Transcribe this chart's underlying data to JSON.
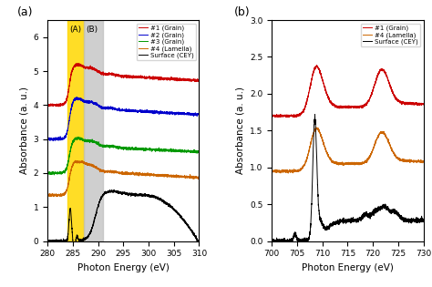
{
  "panel_a": {
    "xlabel": "Photon Energy (eV)",
    "ylabel": "Absorbance (a. u.)",
    "xlim": [
      280,
      310
    ],
    "ylim": [
      0,
      6.5
    ],
    "yticks": [
      0,
      1,
      2,
      3,
      4,
      5,
      6
    ],
    "xticks": [
      280,
      285,
      290,
      295,
      300,
      305,
      310
    ],
    "label": "(a)",
    "yellow_region": [
      284.0,
      287.2
    ],
    "gray_region": [
      287.2,
      291.0
    ],
    "region_label_A": "(A)",
    "region_label_B": "(B)",
    "legend_entries": [
      "#1 (Grain)",
      "#2 (Grain)",
      "#3 (Grain)",
      "#4 (Lamella)",
      "Surface (CEY)"
    ],
    "line_colors": [
      "#cc0000",
      "#0000cc",
      "#009900",
      "#cc6600",
      "#000000"
    ]
  },
  "panel_b": {
    "xlabel": "Photon Energy (eV)",
    "ylabel": "Absorbance (a. u.)",
    "xlim": [
      700,
      730
    ],
    "ylim": [
      0,
      3.0
    ],
    "yticks": [
      0.0,
      0.5,
      1.0,
      1.5,
      2.0,
      2.5,
      3.0
    ],
    "xticks": [
      700,
      705,
      710,
      715,
      720,
      725,
      730
    ],
    "label": "(b)",
    "legend_entries": [
      "#1 (Grain)",
      "#4 (Lamella)",
      "Surface (CEY)"
    ],
    "line_colors": [
      "#cc0000",
      "#cc6600",
      "#000000"
    ]
  }
}
